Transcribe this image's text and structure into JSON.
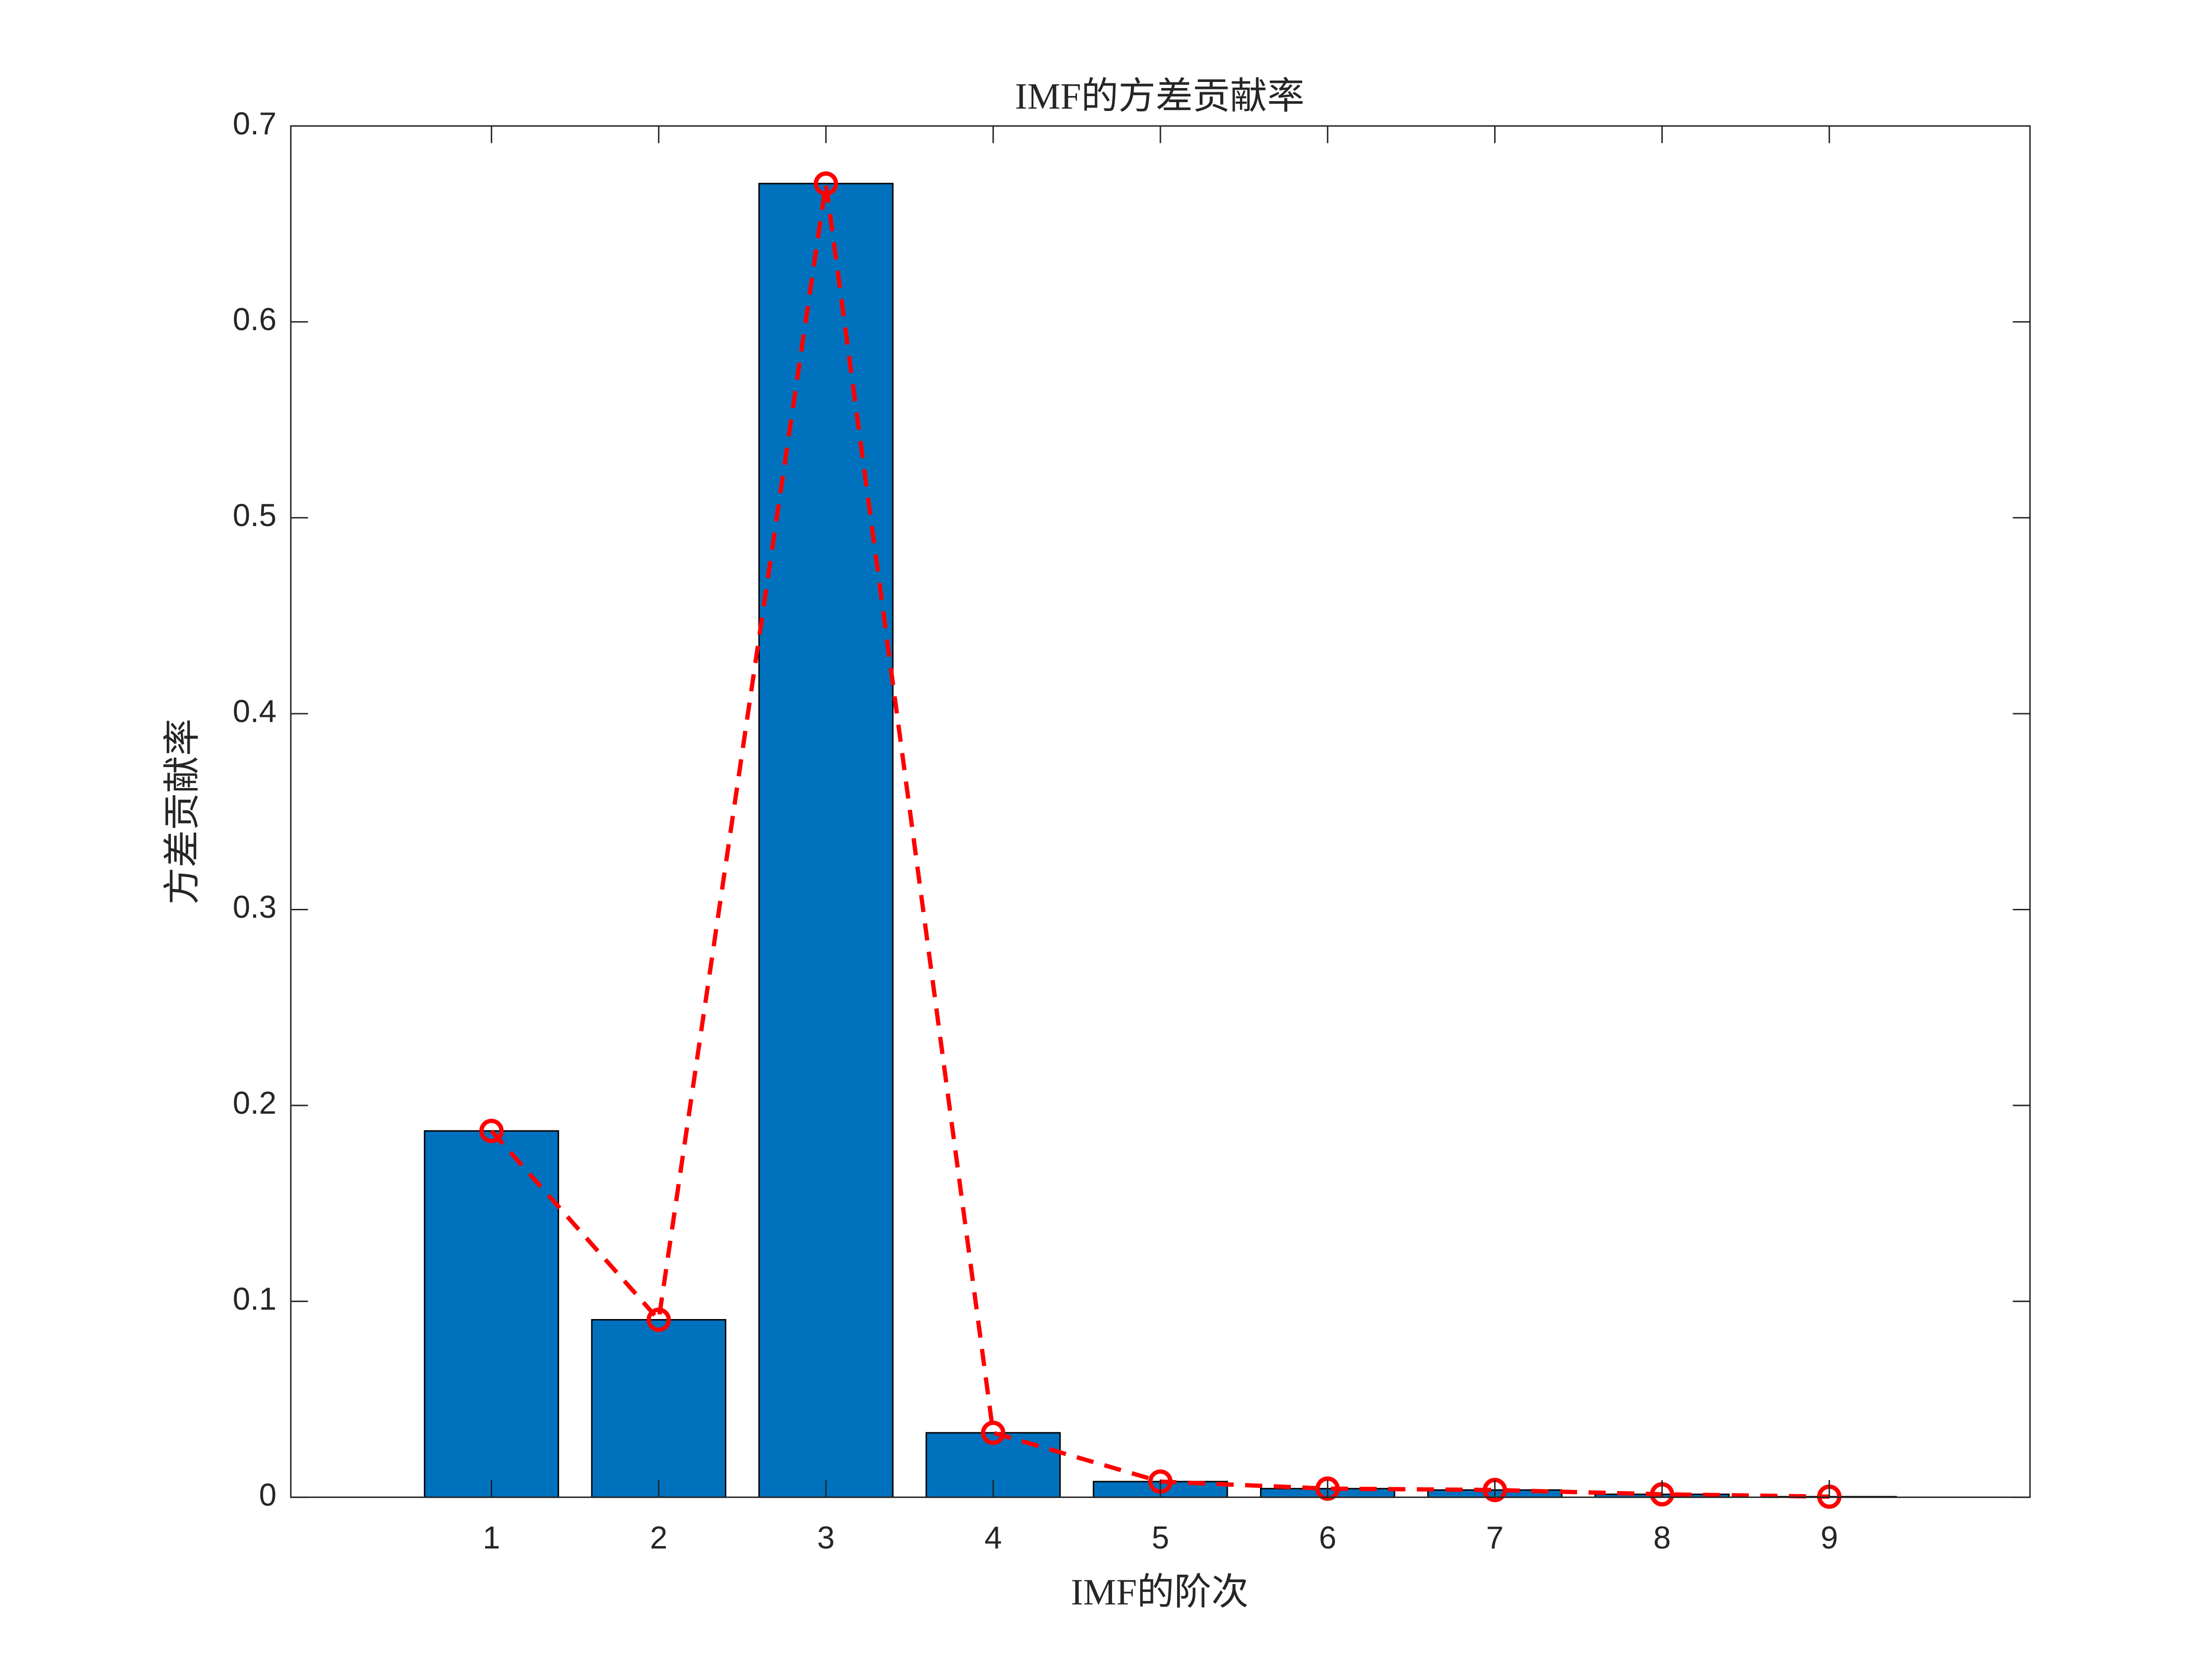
{
  "chart_data": {
    "type": "bar",
    "title": "IMF的方差贡献率",
    "xlabel": "IMF的阶次",
    "ylabel": "方差贡献率",
    "x": [
      1,
      2,
      3,
      4,
      5,
      6,
      7,
      8,
      9
    ],
    "series": [
      {
        "type": "bar",
        "color": "#0072bd",
        "values": [
          0.187,
          0.0906,
          0.6706,
          0.0329,
          0.008,
          0.0044,
          0.0037,
          0.0015,
          0.0003
        ]
      },
      {
        "type": "line",
        "color": "#ff0000",
        "values": [
          0.187,
          0.0906,
          0.6706,
          0.0329,
          0.008,
          0.0044,
          0.0037,
          0.0015,
          0.0003
        ]
      }
    ],
    "xlim": [
      -0.2,
      10.2
    ],
    "xticks": [
      1,
      2,
      3,
      4,
      5,
      6,
      7,
      8,
      9
    ],
    "ylim": [
      0,
      0.7
    ],
    "yticks": [
      0,
      0.1,
      0.2,
      0.3,
      0.4,
      0.5,
      0.6,
      0.7
    ],
    "grid": false
  }
}
